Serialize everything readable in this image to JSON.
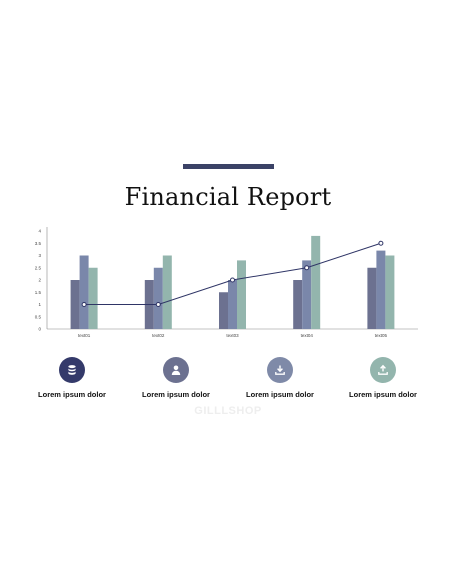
{
  "page": {
    "title": "Financial Report",
    "watermark": "GILLLSHOP"
  },
  "colors": {
    "accent": "#3b4266",
    "series": [
      "#6c7190",
      "#7a87aa",
      "#93b5ad"
    ],
    "line": "#2f3566",
    "axis": "#888888"
  },
  "chart_data": {
    "type": "bar",
    "categories": [
      "text01",
      "text02",
      "text03",
      "text04",
      "text05"
    ],
    "ylim": [
      0,
      4
    ],
    "yticks": [
      "0",
      "0.5",
      "1",
      "1.5",
      "2",
      "2.5",
      "3",
      "3.5",
      "4"
    ],
    "series": [
      {
        "values": [
          2,
          2,
          1.5,
          2,
          2.5
        ]
      },
      {
        "values": [
          3,
          2.5,
          2,
          2.8,
          3.2
        ]
      },
      {
        "values": [
          2.5,
          3,
          2.8,
          3.8,
          3
        ]
      }
    ],
    "line": {
      "type": "line",
      "values": [
        1,
        1,
        2,
        2.5,
        3.5
      ]
    },
    "legend": "none",
    "grid": false
  },
  "icons": [
    {
      "name": "database-icon",
      "label": "Lorem ipsum dolor",
      "color": "#343a6a"
    },
    {
      "name": "user-icon",
      "label": "Lorem ipsum dolor",
      "color": "#6c7190"
    },
    {
      "name": "download-icon",
      "label": "Lorem ipsum dolor",
      "color": "#7f8aa8"
    },
    {
      "name": "upload-icon",
      "label": "Lorem ipsum dolor",
      "color": "#93b5ad"
    }
  ]
}
